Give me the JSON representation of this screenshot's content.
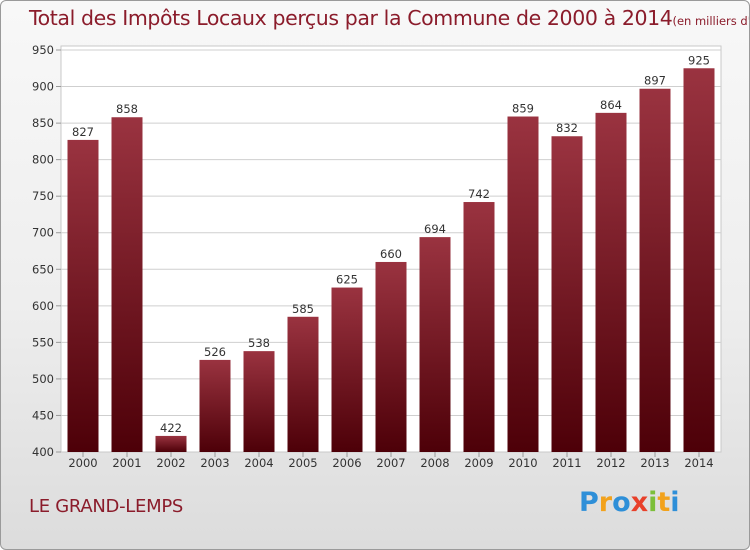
{
  "title": "Total des Impôts Locaux perçus par la Commune de 2000 à 2014",
  "title_unit": "(en milliers d'€)",
  "commune": "LE GRAND-LEMPS",
  "brand": {
    "letters": [
      "P",
      "r",
      "o",
      "x",
      "i",
      "t",
      "i"
    ],
    "colors": [
      "#2e8fd8",
      "#f2a21c",
      "#2e8fd8",
      "#e8402a",
      "#7cbf3a",
      "#f2a21c",
      "#2e8fd8"
    ]
  },
  "colors": {
    "bar_light": "#9a3340",
    "bar_dark": "#4d0008",
    "text": "#8b1c2b"
  },
  "chart_data": {
    "type": "bar",
    "categories": [
      "2000",
      "2001",
      "2002",
      "2003",
      "2004",
      "2005",
      "2006",
      "2007",
      "2008",
      "2009",
      "2010",
      "2011",
      "2012",
      "2013",
      "2014"
    ],
    "values": [
      827,
      858,
      422,
      526,
      538,
      585,
      625,
      660,
      694,
      742,
      859,
      832,
      864,
      897,
      925
    ],
    "data_labels": [
      "827",
      "858",
      "422",
      "526",
      "538",
      "585",
      "625",
      "660",
      "694",
      "742",
      "859",
      "832",
      "864",
      "897",
      "925"
    ],
    "ylim": [
      400,
      950
    ],
    "yticks": [
      "400",
      "450",
      "500",
      "550",
      "600",
      "650",
      "700",
      "750",
      "800",
      "850",
      "900",
      "950"
    ],
    "grid": true
  }
}
